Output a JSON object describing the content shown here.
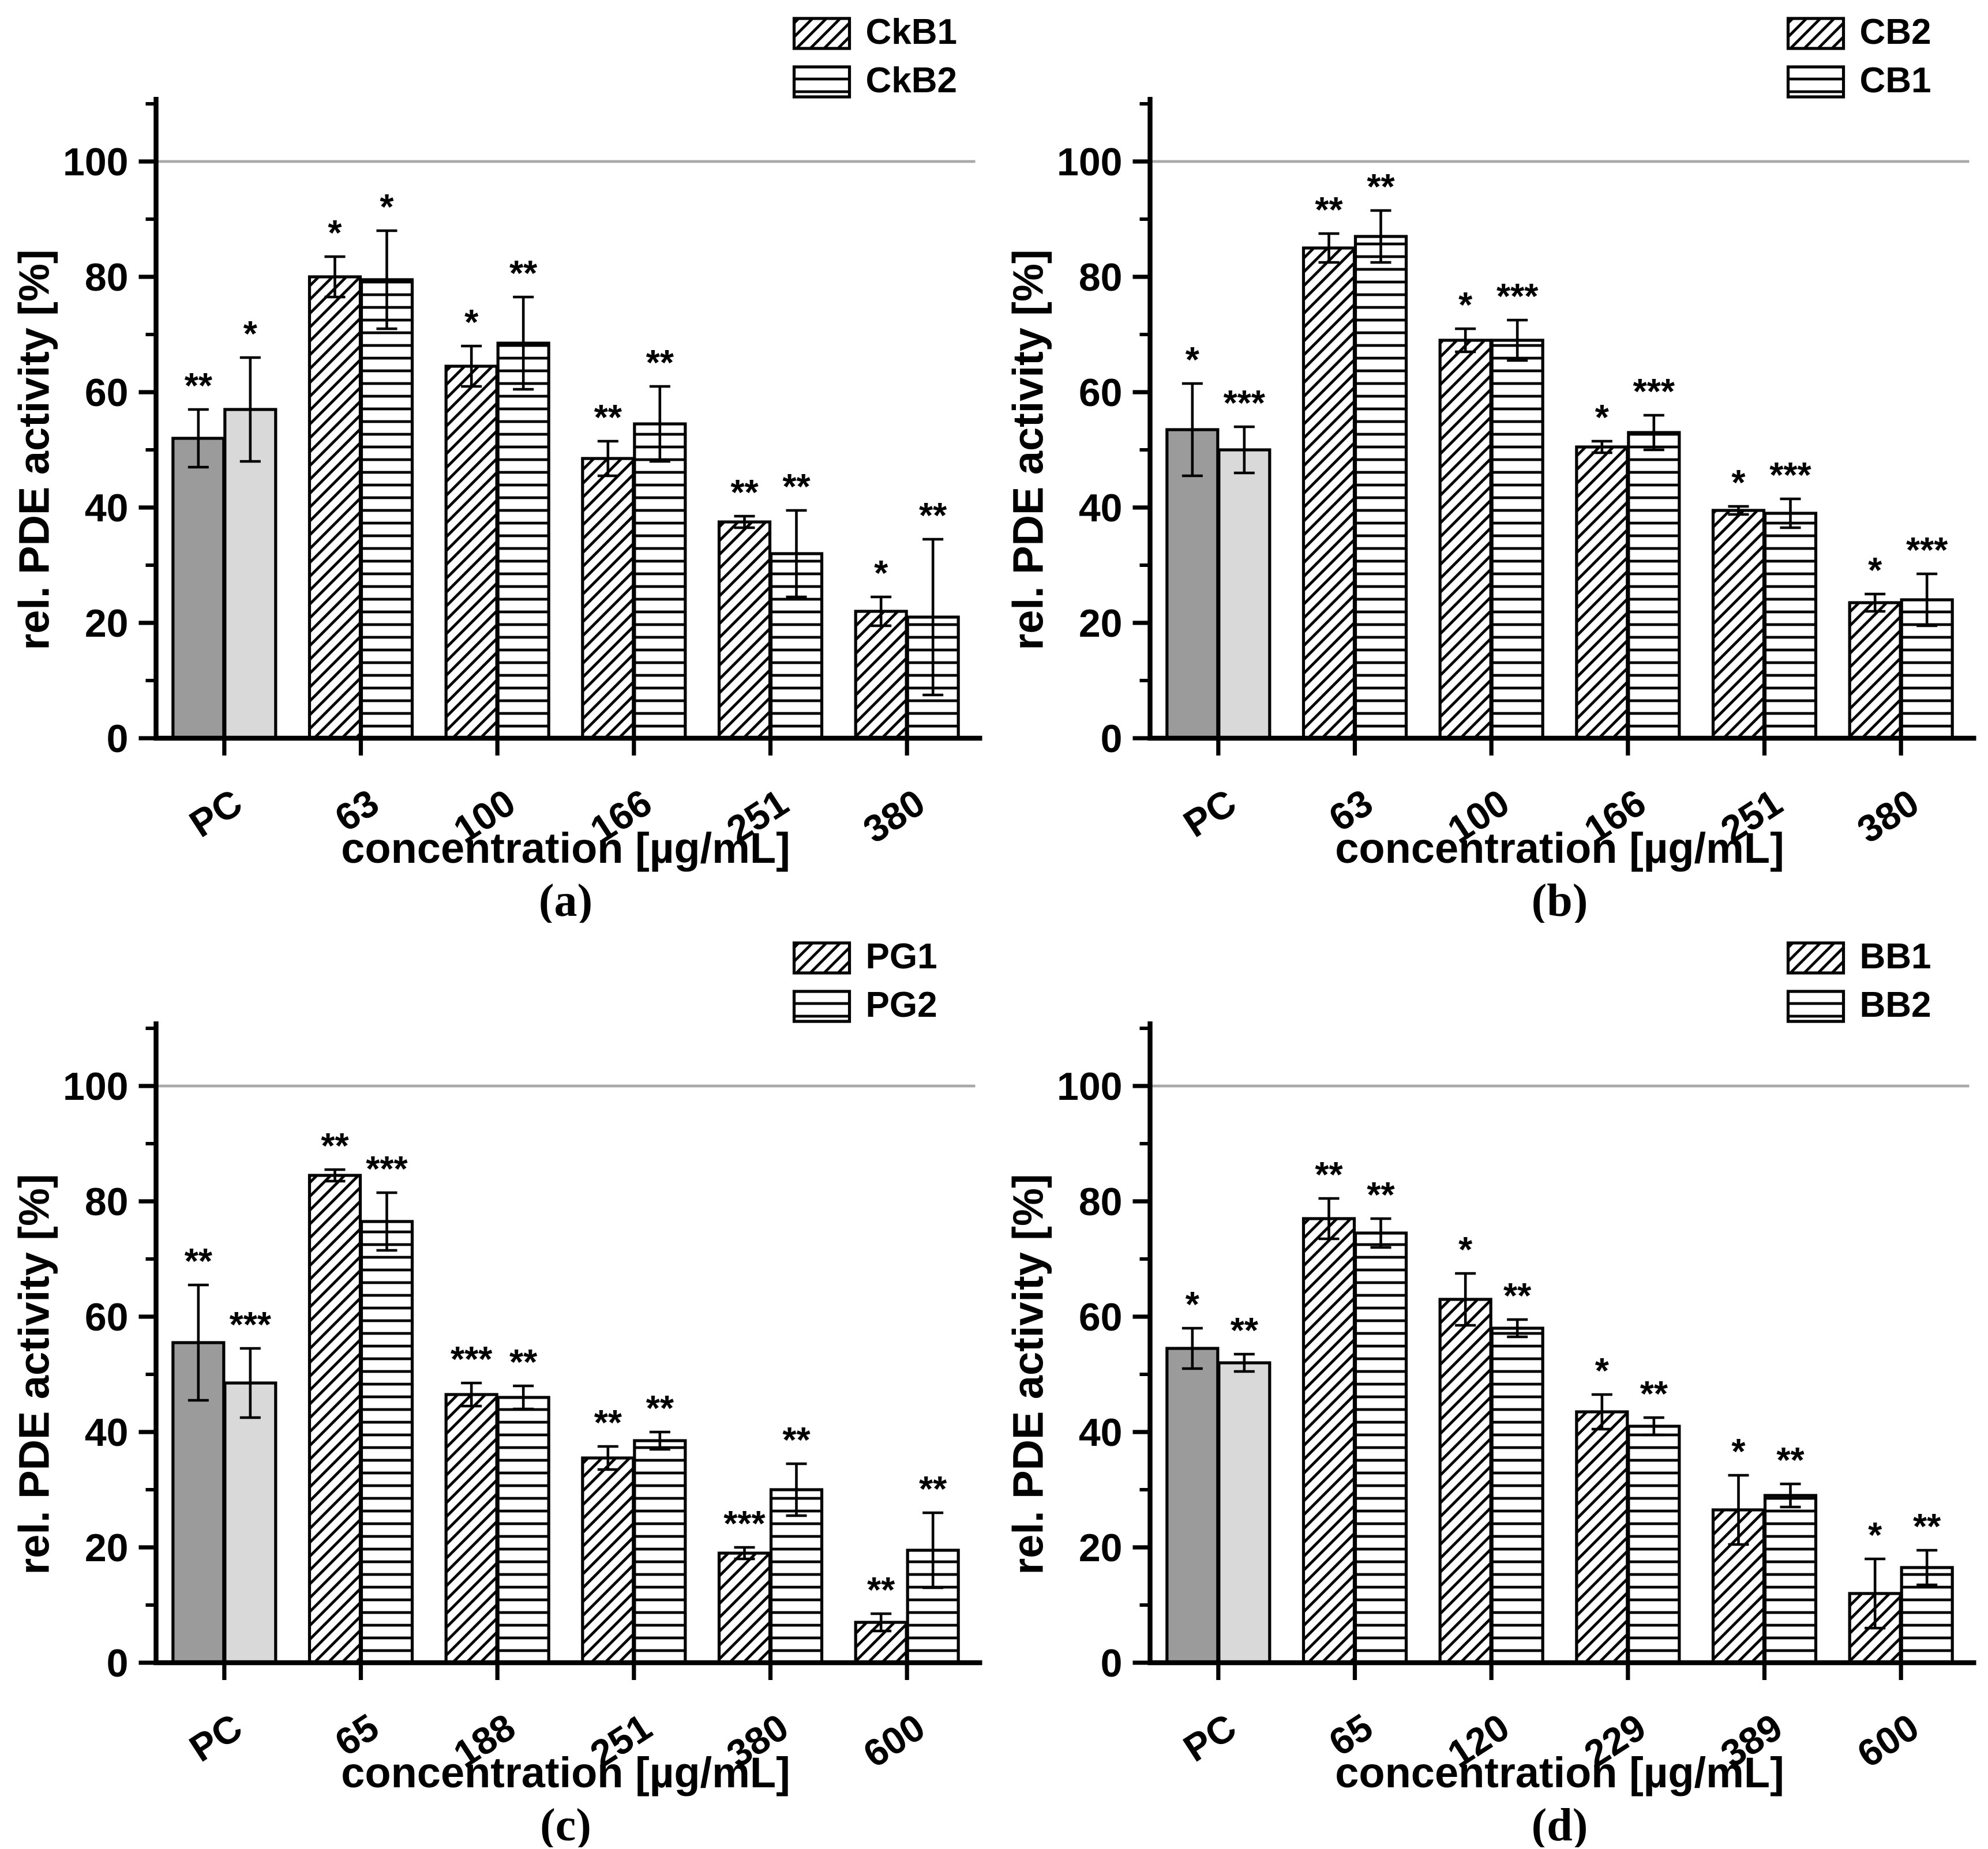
{
  "colors": {
    "axis": "#000000",
    "bar_outline": "#000000",
    "hatch": "#000000",
    "gridline": "#a9a9a9",
    "pc_dark_gray": "#9b9b9b",
    "pc_light_gray": "#d9d9d9",
    "background": "#ffffff"
  },
  "chart_data": [
    {
      "panel": "a",
      "caption": "(a)",
      "type": "bar",
      "title": "",
      "ylabel": "rel. PDE activity [%]",
      "xlabel": "concentration [µg/mL]",
      "ylim": [
        0,
        112
      ],
      "yticks": [
        0,
        20,
        40,
        60,
        80,
        100
      ],
      "gridline_at": 100,
      "grid": "only at 100",
      "legend_position": "top-right",
      "categories": [
        "PC",
        "63",
        "100",
        "166",
        "251",
        "380"
      ],
      "pc_colors": [
        "#9b9b9b",
        "#d9d9d9"
      ],
      "series": [
        {
          "name": "CkB1",
          "pattern": "diagonal",
          "values": [
            52,
            80,
            64.5,
            48.5,
            37.5,
            22
          ],
          "errors": [
            5,
            3.5,
            3.5,
            3,
            1,
            2.5
          ],
          "significance": [
            "**",
            "*",
            "*",
            "**",
            "**",
            "*"
          ]
        },
        {
          "name": "CkB2",
          "pattern": "horizontal",
          "values": [
            57,
            79.5,
            68.5,
            54.5,
            32,
            21
          ],
          "errors": [
            9,
            8.5,
            8,
            6.5,
            7.5,
            13.5
          ],
          "significance": [
            "*",
            "*",
            "**",
            "**",
            "**",
            "**"
          ]
        }
      ]
    },
    {
      "panel": "b",
      "caption": "(b)",
      "type": "bar",
      "title": "",
      "ylabel": "rel. PDE activity [%]",
      "xlabel": "concentration [µg/mL]",
      "ylim": [
        0,
        112
      ],
      "yticks": [
        0,
        20,
        40,
        60,
        80,
        100
      ],
      "gridline_at": 100,
      "grid": "only at 100",
      "legend_position": "top-right",
      "categories": [
        "PC",
        "63",
        "100",
        "166",
        "251",
        "380"
      ],
      "pc_colors": [
        "#9b9b9b",
        "#d9d9d9"
      ],
      "series": [
        {
          "name": "CB2",
          "pattern": "diagonal",
          "values": [
            53.5,
            85,
            69,
            50.5,
            39.5,
            23.5
          ],
          "errors": [
            8,
            2.5,
            2,
            1,
            0.7,
            1.5
          ],
          "significance": [
            "*",
            "**",
            "*",
            "*",
            "*",
            "*"
          ]
        },
        {
          "name": "CB1",
          "pattern": "horizontal",
          "values": [
            50,
            87,
            69,
            53,
            39,
            24
          ],
          "errors": [
            4,
            4.5,
            3.5,
            3,
            2.5,
            4.5
          ],
          "significance": [
            "***",
            "**",
            "***",
            "***",
            "***",
            "***"
          ]
        }
      ]
    },
    {
      "panel": "c",
      "caption": "(c)",
      "type": "bar",
      "title": "",
      "ylabel": "rel. PDE activity [%]",
      "xlabel": "concentration [µg/mL]",
      "ylim": [
        0,
        112
      ],
      "yticks": [
        0,
        20,
        40,
        60,
        80,
        100
      ],
      "gridline_at": 100,
      "grid": "only at 100",
      "legend_position": "top-right",
      "categories": [
        "PC",
        "65",
        "188",
        "251",
        "380",
        "600"
      ],
      "pc_colors": [
        "#9b9b9b",
        "#d9d9d9"
      ],
      "series": [
        {
          "name": "PG1",
          "pattern": "diagonal",
          "values": [
            55.5,
            84.5,
            46.5,
            35.5,
            19,
            7
          ],
          "errors": [
            10,
            1,
            2,
            2,
            1,
            1.5
          ],
          "significance": [
            "**",
            "**",
            "***",
            "**",
            "***",
            "**"
          ]
        },
        {
          "name": "PG2",
          "pattern": "horizontal",
          "values": [
            48.5,
            76.5,
            46,
            38.5,
            30,
            19.5
          ],
          "errors": [
            6,
            5,
            2,
            1.5,
            4.5,
            6.5
          ],
          "significance": [
            "***",
            "***",
            "**",
            "**",
            "**",
            "**"
          ]
        }
      ]
    },
    {
      "panel": "d",
      "caption": "(d)",
      "type": "bar",
      "title": "",
      "ylabel": "rel. PDE activity [%]",
      "xlabel": "concentration [µg/mL]",
      "ylim": [
        0,
        112
      ],
      "yticks": [
        0,
        20,
        40,
        60,
        80,
        100
      ],
      "gridline_at": 100,
      "grid": "only at 100",
      "legend_position": "top-right",
      "categories": [
        "PC",
        "65",
        "120",
        "229",
        "389",
        "600"
      ],
      "pc_colors": [
        "#9b9b9b",
        "#d9d9d9"
      ],
      "series": [
        {
          "name": "BB1",
          "pattern": "diagonal",
          "values": [
            54.5,
            77,
            63,
            43.5,
            26.5,
            12
          ],
          "errors": [
            3.5,
            3.5,
            4.5,
            3,
            6,
            6
          ],
          "significance": [
            "*",
            "**",
            "*",
            "*",
            "*",
            "*"
          ]
        },
        {
          "name": "BB2",
          "pattern": "horizontal",
          "values": [
            52,
            74.5,
            58,
            41,
            29,
            16.5
          ],
          "errors": [
            1.5,
            2.5,
            1.5,
            1.5,
            2,
            3
          ],
          "significance": [
            "**",
            "**",
            "**",
            "**",
            "**",
            "**"
          ]
        }
      ]
    }
  ]
}
